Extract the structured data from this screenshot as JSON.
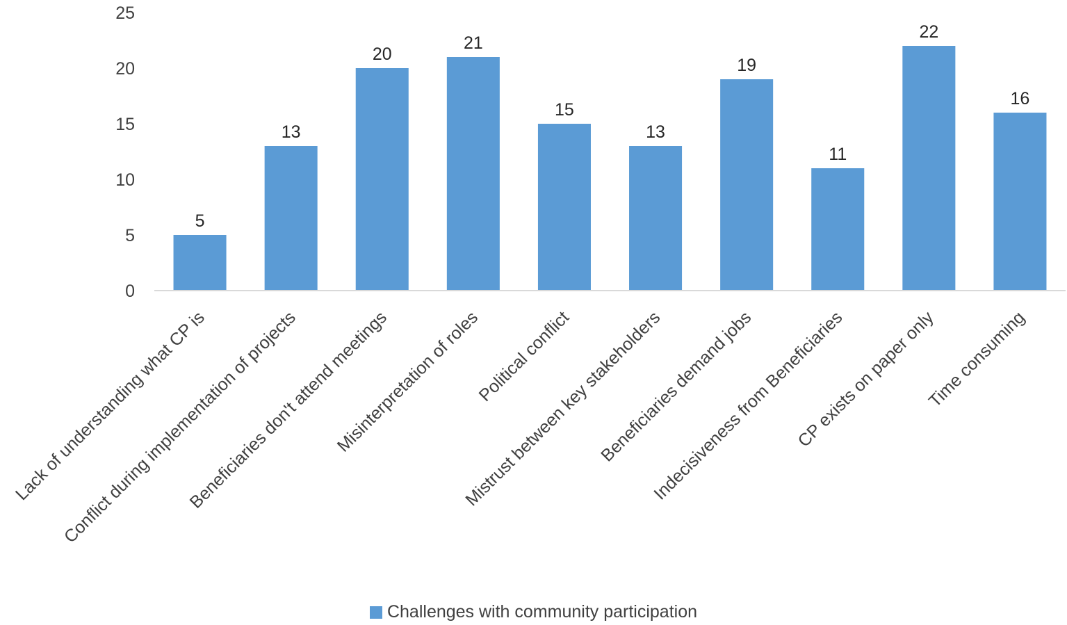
{
  "chart_data": {
    "type": "bar",
    "categories": [
      "Lack of understanding what CP is",
      "Conflict during implementation of projects",
      "Beneficiaries don't attend meetings",
      "Misinterpretation of roles",
      "Political conflict",
      "Mistrust between key stakeholders",
      "Beneficiaries demand jobs",
      "Indecisiveness from Beneficiaries",
      "CP exists on paper only",
      "Time consuming"
    ],
    "series": [
      {
        "name": "Challenges with community participation",
        "values": [
          5,
          13,
          20,
          21,
          15,
          13,
          19,
          11,
          22,
          16
        ]
      }
    ],
    "ylim": [
      0,
      25
    ],
    "yticks": [
      0,
      5,
      10,
      15,
      20,
      25
    ],
    "grid": false,
    "legend_position": "bottom",
    "bar_color": "#5b9bd5",
    "axis_color": "#d9d9d9"
  }
}
